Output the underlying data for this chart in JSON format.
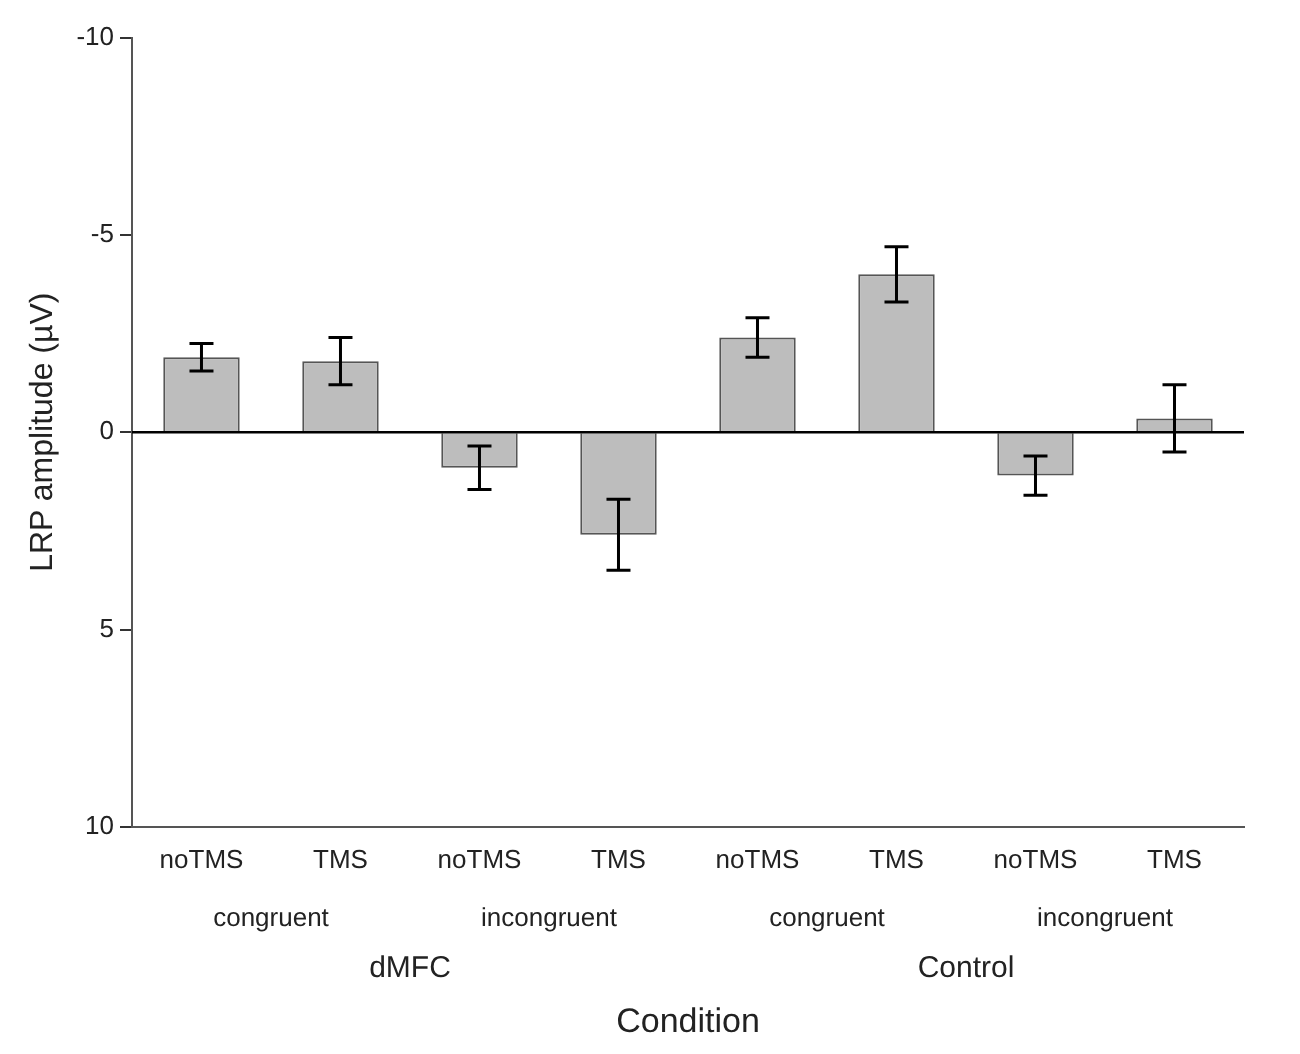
{
  "chart_data": {
    "type": "bar",
    "categories": [
      "noTMS",
      "TMS",
      "noTMS",
      "TMS",
      "noTMS",
      "TMS",
      "noTMS",
      "TMS"
    ],
    "values": [
      -1.9,
      -1.8,
      0.9,
      2.6,
      -2.4,
      -4.0,
      1.1,
      -0.35
    ],
    "errors": [
      0.35,
      0.6,
      0.55,
      0.9,
      0.5,
      0.7,
      0.5,
      0.85
    ],
    "color": "#bdbdbd",
    "ylim": [
      10,
      -10
    ],
    "yticks": [
      10,
      5,
      0,
      -5,
      -10
    ],
    "ref_lines": [
      {
        "axis": "y",
        "value": 0,
        "color": "#000000"
      }
    ],
    "annotations": [
      "congruent",
      "incongruent",
      "congruent",
      "incongruent",
      "dMFC",
      "Control"
    ],
    "xlabel": "Condition",
    "ylabel": "LRP amplitude (µV)",
    "grid": false,
    "legend": false
  }
}
